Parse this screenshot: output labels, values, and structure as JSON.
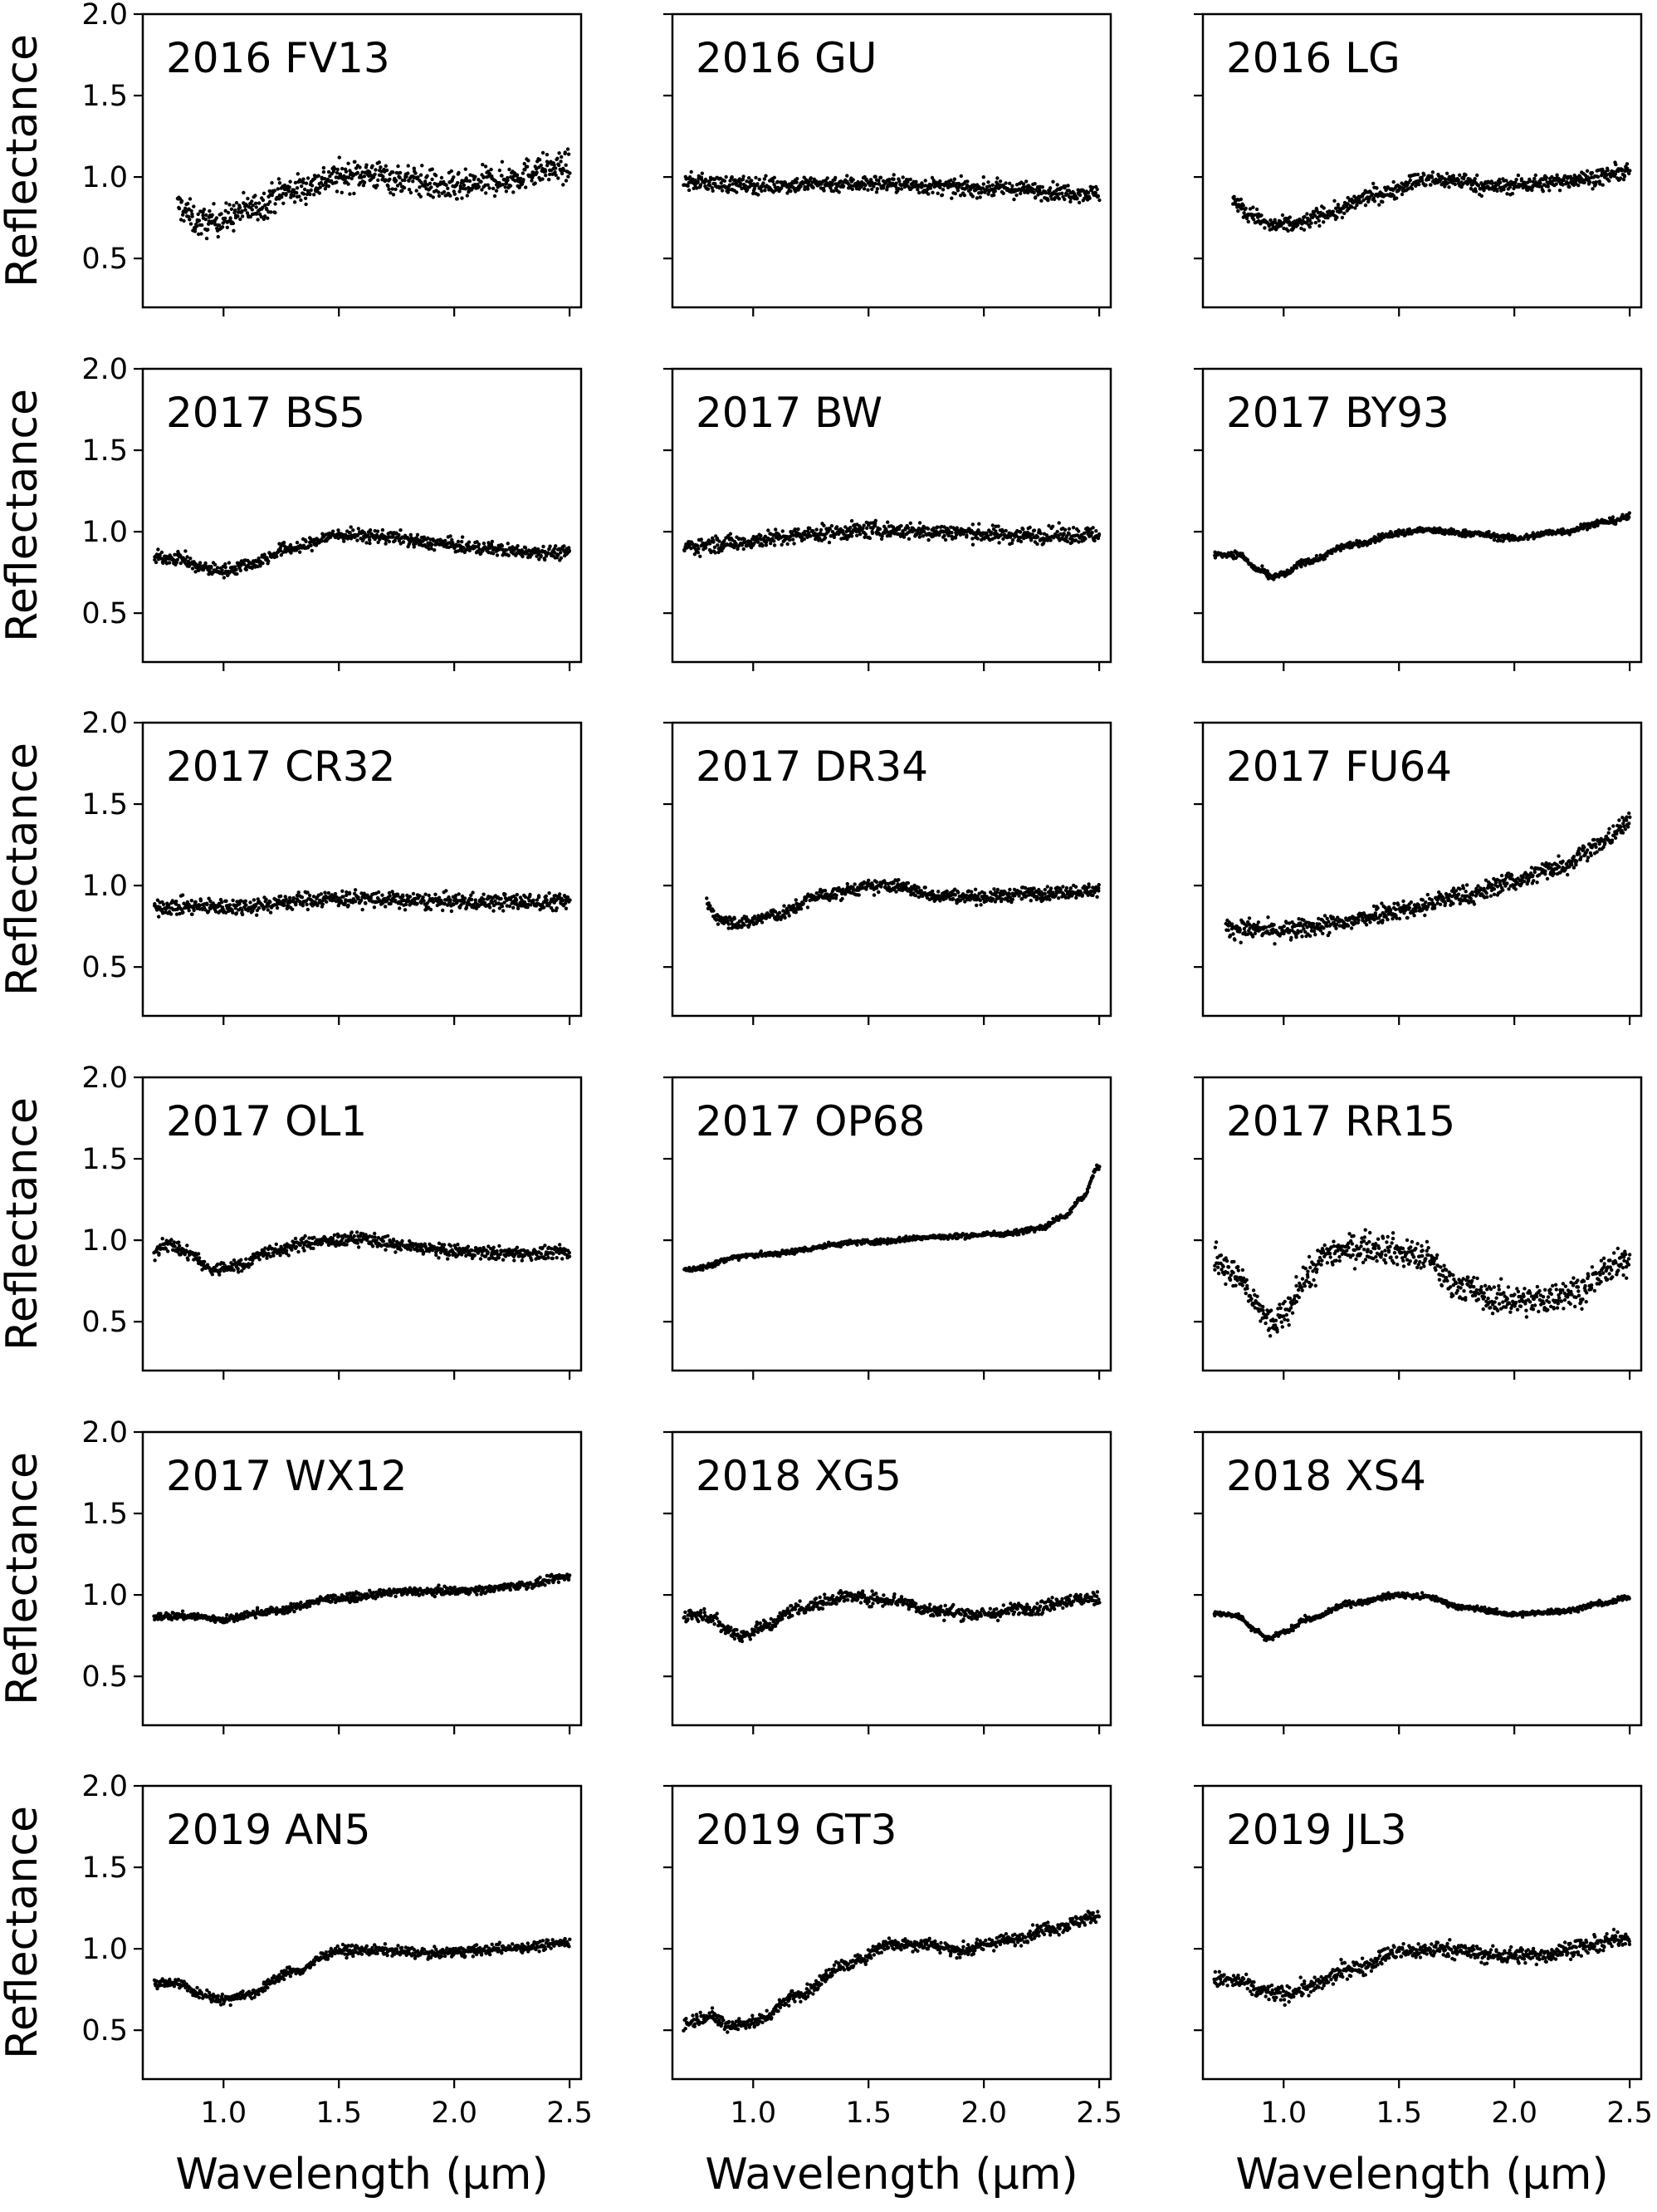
{
  "chart_data": {
    "type": "scatter",
    "layout": "6 rows x 3 columns of small multiples, shared x and y axes",
    "xlabel": "Wavelength (μm)",
    "ylabel": "Reflectance",
    "xlim": [
      0.65,
      2.55
    ],
    "ylim": [
      0.2,
      2.0
    ],
    "xticks": [
      1.0,
      1.5,
      2.0,
      2.5
    ],
    "xtick_labels": [
      "1.0",
      "1.5",
      "2.0",
      "2.5"
    ],
    "yticks": [
      0.5,
      1.0,
      1.5,
      2.0
    ],
    "ytick_labels": [
      "0.5",
      "1.0",
      "1.5",
      "2.0"
    ],
    "marker_color": "#000000",
    "panels": [
      {
        "name": "2016 FV13",
        "x_start": 0.8,
        "x_end": 2.5,
        "noise": 0.045,
        "x": [
          0.8,
          0.9,
          1.0,
          1.1,
          1.3,
          1.5,
          1.6,
          1.8,
          2.0,
          2.2,
          2.4,
          2.5
        ],
        "y": [
          0.82,
          0.72,
          0.74,
          0.8,
          0.92,
          1.0,
          1.02,
          0.98,
          0.93,
          0.98,
          1.05,
          1.06
        ]
      },
      {
        "name": "2016 GU",
        "x_start": 0.7,
        "x_end": 2.5,
        "noise": 0.025,
        "x": [
          0.7,
          1.0,
          1.5,
          2.0,
          2.5
        ],
        "y": [
          0.97,
          0.95,
          0.96,
          0.93,
          0.9
        ]
      },
      {
        "name": "2016 LG",
        "x_start": 0.78,
        "x_end": 2.5,
        "noise": 0.025,
        "x": [
          0.78,
          0.85,
          0.95,
          1.05,
          1.2,
          1.4,
          1.6,
          1.75,
          1.9,
          2.1,
          2.3,
          2.5
        ],
        "y": [
          0.86,
          0.77,
          0.7,
          0.71,
          0.78,
          0.89,
          0.98,
          0.98,
          0.94,
          0.96,
          0.99,
          1.03
        ]
      },
      {
        "name": "2017 BS5",
        "x_start": 0.7,
        "x_end": 2.5,
        "noise": 0.02,
        "x": [
          0.7,
          0.8,
          0.9,
          1.0,
          1.1,
          1.3,
          1.5,
          1.7,
          1.9,
          2.1,
          2.3,
          2.5
        ],
        "y": [
          0.84,
          0.84,
          0.78,
          0.76,
          0.8,
          0.9,
          0.98,
          0.97,
          0.93,
          0.9,
          0.88,
          0.87
        ]
      },
      {
        "name": "2017 BW",
        "x_start": 0.7,
        "x_end": 2.5,
        "noise": 0.025,
        "x": [
          0.7,
          0.9,
          1.1,
          1.3,
          1.5,
          1.8,
          2.1,
          2.5
        ],
        "y": [
          0.91,
          0.93,
          0.96,
          0.99,
          1.01,
          1.0,
          0.98,
          0.98
        ]
      },
      {
        "name": "2017 BY93",
        "x_start": 0.7,
        "x_end": 2.5,
        "noise": 0.01,
        "x": [
          0.7,
          0.8,
          0.9,
          0.95,
          1.0,
          1.1,
          1.3,
          1.5,
          1.6,
          1.8,
          2.0,
          2.2,
          2.4,
          2.5
        ],
        "y": [
          0.86,
          0.86,
          0.76,
          0.72,
          0.74,
          0.82,
          0.92,
          0.99,
          1.01,
          0.99,
          0.96,
          1.0,
          1.06,
          1.09
        ]
      },
      {
        "name": "2017 CR32",
        "x_start": 0.7,
        "x_end": 2.5,
        "noise": 0.025,
        "x": [
          0.7,
          1.0,
          1.5,
          2.0,
          2.5
        ],
        "y": [
          0.87,
          0.87,
          0.92,
          0.9,
          0.9
        ]
      },
      {
        "name": "2017 DR34",
        "x_start": 0.8,
        "x_end": 2.5,
        "noise": 0.02,
        "x": [
          0.8,
          0.85,
          0.95,
          1.1,
          1.3,
          1.5,
          1.6,
          1.8,
          2.0,
          2.2,
          2.5
        ],
        "y": [
          0.88,
          0.8,
          0.77,
          0.82,
          0.94,
          0.99,
          1.0,
          0.94,
          0.93,
          0.95,
          0.97
        ]
      },
      {
        "name": "2017 FU64",
        "x_start": 0.75,
        "x_end": 2.5,
        "noise": 0.03,
        "x": [
          0.75,
          1.0,
          1.2,
          1.5,
          1.8,
          2.0,
          2.2,
          2.35,
          2.5
        ],
        "y": [
          0.74,
          0.72,
          0.76,
          0.85,
          0.94,
          1.03,
          1.12,
          1.24,
          1.38
        ]
      },
      {
        "name": "2017 OL1",
        "x_start": 0.7,
        "x_end": 2.5,
        "noise": 0.02,
        "x": [
          0.7,
          0.75,
          0.85,
          0.95,
          1.05,
          1.2,
          1.4,
          1.6,
          1.8,
          2.0,
          2.2,
          2.5
        ],
        "y": [
          0.93,
          0.98,
          0.92,
          0.82,
          0.84,
          0.93,
          0.99,
          1.01,
          0.96,
          0.93,
          0.92,
          0.92
        ]
      },
      {
        "name": "2017 OP68",
        "x_start": 0.7,
        "x_end": 2.5,
        "noise": 0.008,
        "x": [
          0.7,
          1.0,
          1.5,
          1.8,
          2.1,
          2.25,
          2.35,
          2.42,
          2.5
        ],
        "y": [
          0.82,
          0.91,
          0.99,
          1.02,
          1.04,
          1.08,
          1.15,
          1.25,
          1.45
        ]
      },
      {
        "name": "2017 RR15",
        "x_start": 0.7,
        "x_end": 2.5,
        "noise": 0.045,
        "x": [
          0.7,
          0.8,
          0.9,
          0.95,
          1.0,
          1.1,
          1.2,
          1.4,
          1.6,
          1.75,
          1.9,
          2.1,
          2.3,
          2.4,
          2.5
        ],
        "y": [
          0.9,
          0.77,
          0.57,
          0.48,
          0.53,
          0.78,
          0.93,
          0.96,
          0.9,
          0.73,
          0.64,
          0.63,
          0.7,
          0.82,
          0.86
        ]
      },
      {
        "name": "2017 WX12",
        "x_start": 0.7,
        "x_end": 2.5,
        "noise": 0.012,
        "x": [
          0.7,
          0.85,
          1.0,
          1.2,
          1.5,
          1.8,
          2.1,
          2.3,
          2.5
        ],
        "y": [
          0.87,
          0.87,
          0.85,
          0.9,
          0.98,
          1.02,
          1.03,
          1.06,
          1.11
        ]
      },
      {
        "name": "2018 XG5",
        "x_start": 0.7,
        "x_end": 2.5,
        "noise": 0.02,
        "x": [
          0.7,
          0.8,
          0.9,
          0.95,
          1.05,
          1.2,
          1.4,
          1.6,
          1.8,
          2.0,
          2.2,
          2.4,
          2.5
        ],
        "y": [
          0.88,
          0.87,
          0.78,
          0.75,
          0.81,
          0.92,
          0.99,
          0.97,
          0.9,
          0.88,
          0.92,
          0.97,
          0.98
        ]
      },
      {
        "name": "2018 XS4",
        "x_start": 0.7,
        "x_end": 2.5,
        "noise": 0.008,
        "x": [
          0.7,
          0.8,
          0.88,
          0.93,
          1.0,
          1.1,
          1.3,
          1.5,
          1.6,
          1.8,
          2.0,
          2.2,
          2.4,
          2.5
        ],
        "y": [
          0.89,
          0.87,
          0.78,
          0.73,
          0.77,
          0.85,
          0.95,
          1.0,
          0.99,
          0.92,
          0.88,
          0.9,
          0.95,
          0.99
        ]
      },
      {
        "name": "2019 AN5",
        "x_start": 0.7,
        "x_end": 2.5,
        "noise": 0.015,
        "x": [
          0.7,
          0.8,
          0.9,
          1.0,
          1.1,
          1.3,
          1.5,
          1.7,
          1.9,
          2.1,
          2.3,
          2.5
        ],
        "y": [
          0.79,
          0.79,
          0.72,
          0.69,
          0.72,
          0.86,
          0.99,
          0.99,
          0.97,
          0.99,
          1.01,
          1.04
        ]
      },
      {
        "name": "2019 GT3",
        "x_start": 0.7,
        "x_end": 2.5,
        "noise": 0.02,
        "x": [
          0.7,
          0.8,
          0.9,
          1.0,
          1.2,
          1.4,
          1.6,
          1.75,
          1.9,
          2.1,
          2.3,
          2.5
        ],
        "y": [
          0.54,
          0.59,
          0.53,
          0.55,
          0.72,
          0.9,
          1.03,
          1.03,
          0.99,
          1.05,
          1.13,
          1.2
        ]
      },
      {
        "name": "2019 JL3",
        "x_start": 0.7,
        "x_end": 2.5,
        "noise": 0.025,
        "x": [
          0.7,
          0.8,
          0.9,
          1.0,
          1.1,
          1.3,
          1.5,
          1.7,
          1.9,
          2.1,
          2.3,
          2.5
        ],
        "y": [
          0.81,
          0.8,
          0.74,
          0.72,
          0.76,
          0.88,
          0.98,
          1.0,
          0.96,
          0.96,
          1.01,
          1.07
        ]
      }
    ]
  }
}
